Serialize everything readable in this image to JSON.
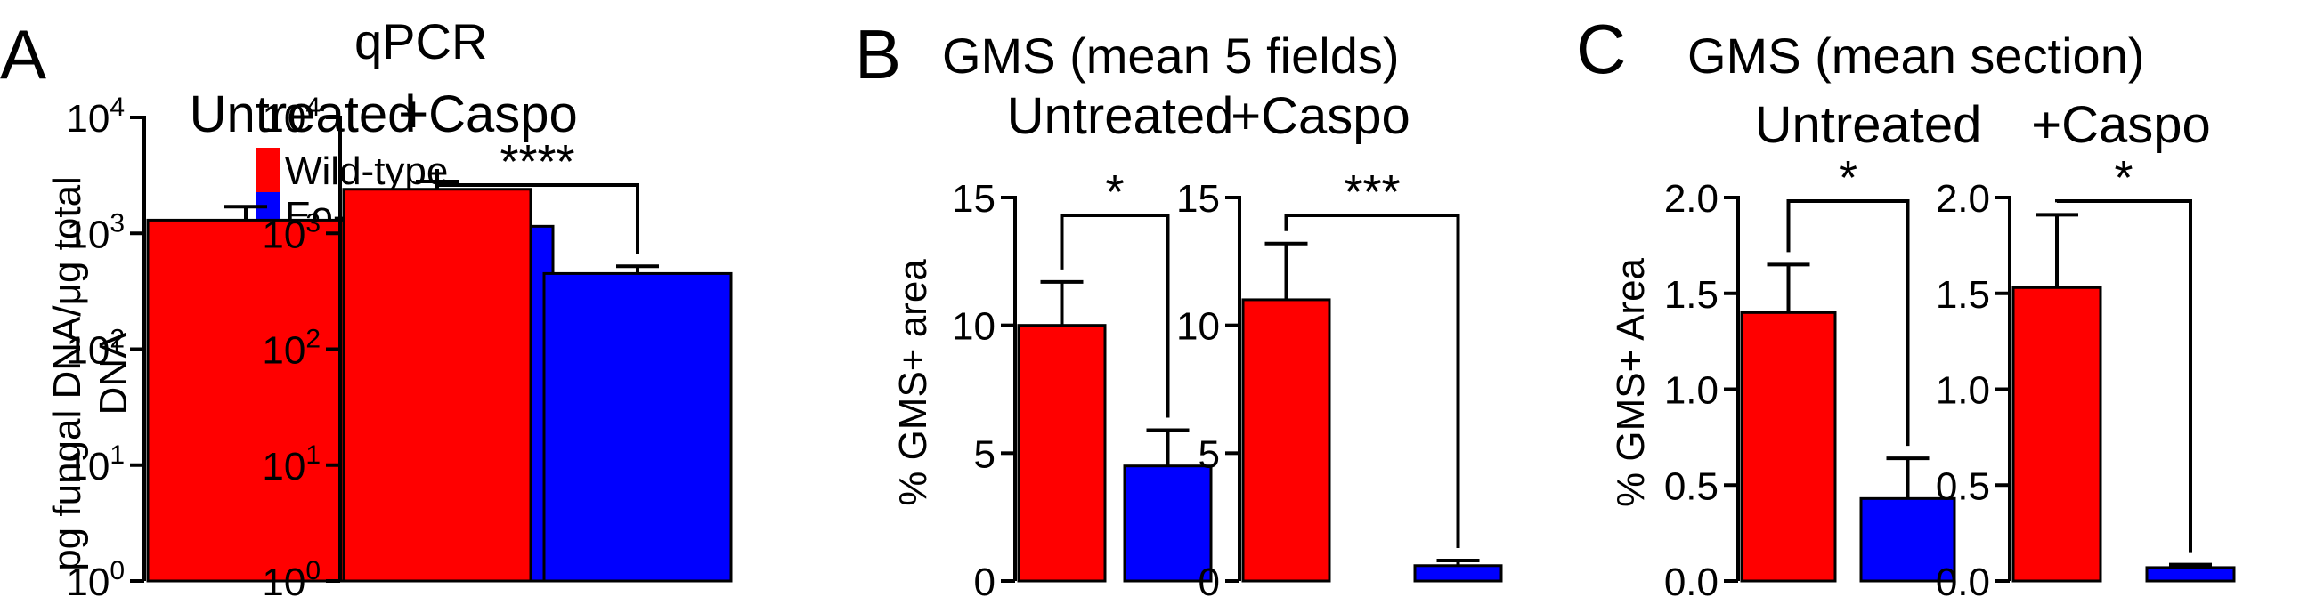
{
  "colors": {
    "wild_type": "#ff0000",
    "eo_ko": "#0000ff",
    "axis": "#000000"
  },
  "legend": [
    {
      "label": "Wild-type",
      "color": "#ff0000"
    },
    {
      "label": "Eo-/-",
      "color": "#0000ff"
    }
  ],
  "panels": [
    {
      "letter": "A",
      "title": "qPCR",
      "ylabel_lines": [
        "pg fungal DNA/μg total",
        "DNA"
      ]
    },
    {
      "letter": "B",
      "title": "GMS (mean 5 fields)",
      "ylabel_lines": [
        "% GMS+ area"
      ]
    },
    {
      "letter": "C",
      "title": "GMS (mean section)",
      "ylabel_lines": [
        "% GMS+ Area"
      ]
    }
  ],
  "chart_data": [
    {
      "panel": "A",
      "sub": "Untreated",
      "type": "bar",
      "scale": "log",
      "title": "Untreated",
      "ylabel": "pg fungal DNA/μg total DNA",
      "categories": [
        "Wild-type",
        "Eo-/-"
      ],
      "values": [
        1300,
        1150
      ],
      "errors": [
        1700,
        1350
      ],
      "ylim": [
        1,
        10000
      ],
      "significance": "",
      "ticks": [
        {
          "value": 1,
          "base": "10",
          "exp": "0"
        },
        {
          "value": 10,
          "base": "10",
          "exp": "1"
        },
        {
          "value": 100,
          "base": "10",
          "exp": "2"
        },
        {
          "value": 1000,
          "base": "10",
          "exp": "3"
        },
        {
          "value": 10000,
          "base": "10",
          "exp": "4"
        }
      ]
    },
    {
      "panel": "A",
      "sub": "+Caspo",
      "type": "bar",
      "scale": "log",
      "title": "+Caspo",
      "ylabel": "pg fungal DNA/μg total DNA",
      "categories": [
        "Wild-type",
        "Eo-/-"
      ],
      "values": [
        2400,
        450
      ],
      "errors": [
        2800,
        520
      ],
      "ylim": [
        1,
        10000
      ],
      "significance": "****",
      "ticks": [
        {
          "value": 1,
          "base": "10",
          "exp": "0"
        },
        {
          "value": 10,
          "base": "10",
          "exp": "1"
        },
        {
          "value": 100,
          "base": "10",
          "exp": "2"
        },
        {
          "value": 1000,
          "base": "10",
          "exp": "3"
        },
        {
          "value": 10000,
          "base": "10",
          "exp": "4"
        }
      ]
    },
    {
      "panel": "B",
      "sub": "Untreated",
      "type": "bar",
      "scale": "linear",
      "title": "Untreated",
      "ylabel": "% GMS+ area",
      "categories": [
        "Wild-type",
        "Eo-/-"
      ],
      "values": [
        10.0,
        4.5
      ],
      "errors": [
        11.7,
        5.9
      ],
      "ylim": [
        0,
        15
      ],
      "significance": "*",
      "ticks": [
        {
          "value": 0,
          "label": "0"
        },
        {
          "value": 5,
          "label": "5"
        },
        {
          "value": 10,
          "label": "10"
        },
        {
          "value": 15,
          "label": "15"
        }
      ]
    },
    {
      "panel": "B",
      "sub": "+Caspo",
      "type": "bar",
      "scale": "linear",
      "title": "+Caspo",
      "ylabel": "% GMS+ area",
      "categories": [
        "Wild-type",
        "Eo-/-"
      ],
      "values": [
        11.0,
        0.6
      ],
      "errors": [
        13.2,
        0.8
      ],
      "ylim": [
        0,
        15
      ],
      "significance": "***",
      "ticks": [
        {
          "value": 0,
          "label": "0"
        },
        {
          "value": 5,
          "label": "5"
        },
        {
          "value": 10,
          "label": "10"
        },
        {
          "value": 15,
          "label": "15"
        }
      ]
    },
    {
      "panel": "C",
      "sub": "Untreated",
      "type": "bar",
      "scale": "linear",
      "title": "Untreated",
      "ylabel": "% GMS+ Area",
      "categories": [
        "Wild-type",
        "Eo-/-"
      ],
      "values": [
        1.4,
        0.43
      ],
      "errors": [
        1.65,
        0.64
      ],
      "ylim": [
        0,
        2
      ],
      "significance": "*",
      "ticks": [
        {
          "value": 0,
          "label": "0.0"
        },
        {
          "value": 0.5,
          "label": "0.5"
        },
        {
          "value": 1,
          "label": "1.0"
        },
        {
          "value": 1.5,
          "label": "1.5"
        },
        {
          "value": 2,
          "label": "2.0"
        }
      ]
    },
    {
      "panel": "C",
      "sub": "+Caspo",
      "type": "bar",
      "scale": "linear",
      "title": "+Caspo",
      "ylabel": "% GMS+ Area",
      "categories": [
        "Wild-type",
        "Eo-/-"
      ],
      "values": [
        1.53,
        0.07
      ],
      "errors": [
        1.91,
        0.085
      ],
      "ylim": [
        0,
        2
      ],
      "significance": "*",
      "ticks": [
        {
          "value": 0,
          "label": "0.0"
        },
        {
          "value": 0.5,
          "label": "0.5"
        },
        {
          "value": 1,
          "label": "1.0"
        },
        {
          "value": 1.5,
          "label": "1.5"
        },
        {
          "value": 2,
          "label": "2.0"
        }
      ]
    }
  ]
}
